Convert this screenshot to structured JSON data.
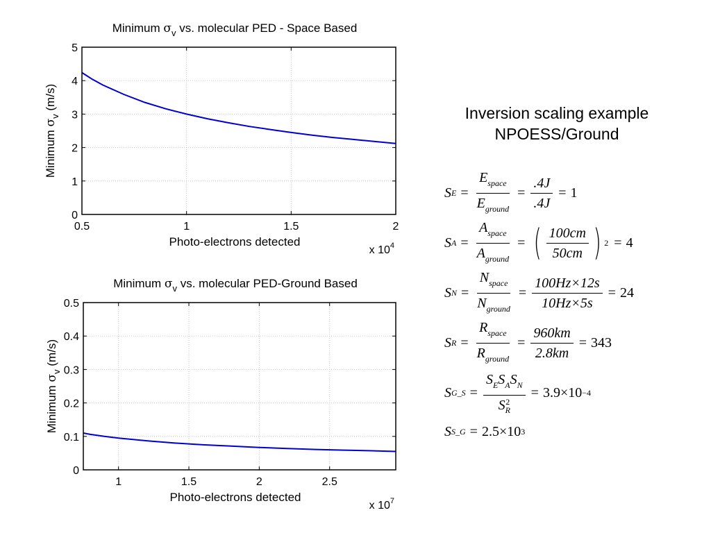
{
  "chart_data": [
    {
      "type": "line",
      "title": "Minimum σv vs. molecular PED - Space Based",
      "title_parts": {
        "pre": "Minimum ",
        "sym": "σ",
        "sub": "v",
        "post": " vs. molecular PED - Space Based"
      },
      "xlabel": "Photo-electrons detected",
      "ylabel": "Minimum σv (m/s)",
      "ylabel_parts": {
        "pre": "Minimum ",
        "sym": "σ",
        "sub": "v",
        "post": " (m/s)"
      },
      "x_multiplier": {
        "base": "x 10",
        "exp": "4"
      },
      "xlim": [
        0.5,
        2
      ],
      "ylim": [
        0,
        5
      ],
      "xticks": [
        0.5,
        1,
        1.5,
        2
      ],
      "xtick_labels": [
        "0.5",
        "1",
        "1.5",
        "2"
      ],
      "yticks": [
        0,
        1,
        2,
        3,
        4,
        5
      ],
      "ytick_labels": [
        "0",
        "1",
        "2",
        "3",
        "4",
        "5"
      ],
      "grid": true,
      "line_color": "#0000cc",
      "series": [
        {
          "x": [
            0.5,
            0.55,
            0.6,
            0.7,
            0.8,
            0.9,
            1.0,
            1.1,
            1.2,
            1.3,
            1.4,
            1.5,
            1.6,
            1.7,
            1.8,
            1.9,
            2.0
          ],
          "values": [
            4.24,
            4.04,
            3.87,
            3.59,
            3.35,
            3.16,
            3.0,
            2.86,
            2.74,
            2.63,
            2.54,
            2.45,
            2.37,
            2.3,
            2.24,
            2.18,
            2.12
          ]
        }
      ]
    },
    {
      "type": "line",
      "title": "Minimum σv vs. molecular PED-Ground Based",
      "title_parts": {
        "pre": "Minimum ",
        "sym": "σ",
        "sub": "v",
        "post": " vs. molecular PED-Ground Based"
      },
      "xlabel": "Photo-electrons detected",
      "ylabel": "Minimum σv (m/s)",
      "ylabel_parts": {
        "pre": "Minimum ",
        "sym": "σ",
        "sub": "v",
        "post": " (m/s)"
      },
      "x_multiplier": {
        "base": "x 10",
        "exp": "7"
      },
      "xlim": [
        0.75,
        2.97
      ],
      "ylim": [
        0,
        0.5
      ],
      "xticks": [
        1,
        1.5,
        2,
        2.5
      ],
      "xtick_labels": [
        "1",
        "1.5",
        "2",
        "2.5"
      ],
      "yticks": [
        0,
        0.1,
        0.2,
        0.3,
        0.4,
        0.5
      ],
      "ytick_labels": [
        "0",
        "0.1",
        "0.2",
        "0.3",
        "0.4",
        "0.5"
      ],
      "grid": true,
      "line_color": "#0000cc",
      "series": [
        {
          "x": [
            0.75,
            0.8,
            0.9,
            1.0,
            1.2,
            1.4,
            1.6,
            1.8,
            2.0,
            2.2,
            2.4,
            2.6,
            2.8,
            2.97
          ],
          "values": [
            0.11,
            0.106,
            0.1,
            0.095,
            0.087,
            0.08,
            0.075,
            0.071,
            0.067,
            0.064,
            0.061,
            0.059,
            0.057,
            0.055
          ]
        }
      ]
    }
  ],
  "panel": {
    "heading_line1": "Inversion scaling example",
    "heading_line2": "NPOESS/Ground",
    "eq_E": {
      "lhs": "S",
      "lhs_sub": "E",
      "num_var": "E",
      "num_sub": "space",
      "den_var": "E",
      "den_sub": "ground",
      "num2": ".4J",
      "den2": ".4J",
      "result": "1"
    },
    "eq_A": {
      "lhs": "S",
      "lhs_sub": "A",
      "num_var": "A",
      "num_sub": "space",
      "den_var": "A",
      "den_sub": "ground",
      "num2": "100cm",
      "den2": "50cm",
      "power": "2",
      "result": "4"
    },
    "eq_N": {
      "lhs": "S",
      "lhs_sub": "N",
      "num_var": "N",
      "num_sub": "space",
      "den_var": "N",
      "den_sub": "ground",
      "num2": "100Hz×12s",
      "den2": "10Hz×5s",
      "result": "24"
    },
    "eq_R": {
      "lhs": "S",
      "lhs_sub": "R",
      "num_var": "R",
      "num_sub": "space",
      "den_var": "R",
      "den_sub": "ground",
      "num2": "960km",
      "den2": "2.8km",
      "result": "343"
    },
    "eq_GS": {
      "lhs": "S",
      "lhs_sub": "G_S",
      "num": "S",
      "num_sub1": "E",
      "num_sub2": "A",
      "num_sub3": "N",
      "den": "S",
      "den_sub": "R",
      "den_sup": "2",
      "result": "3.9×10",
      "result_exp": "−4"
    },
    "eq_SG": {
      "lhs": "S",
      "lhs_sub": "S_G",
      "result": "2.5×10",
      "result_exp": "3"
    },
    "eq_sign": "="
  }
}
